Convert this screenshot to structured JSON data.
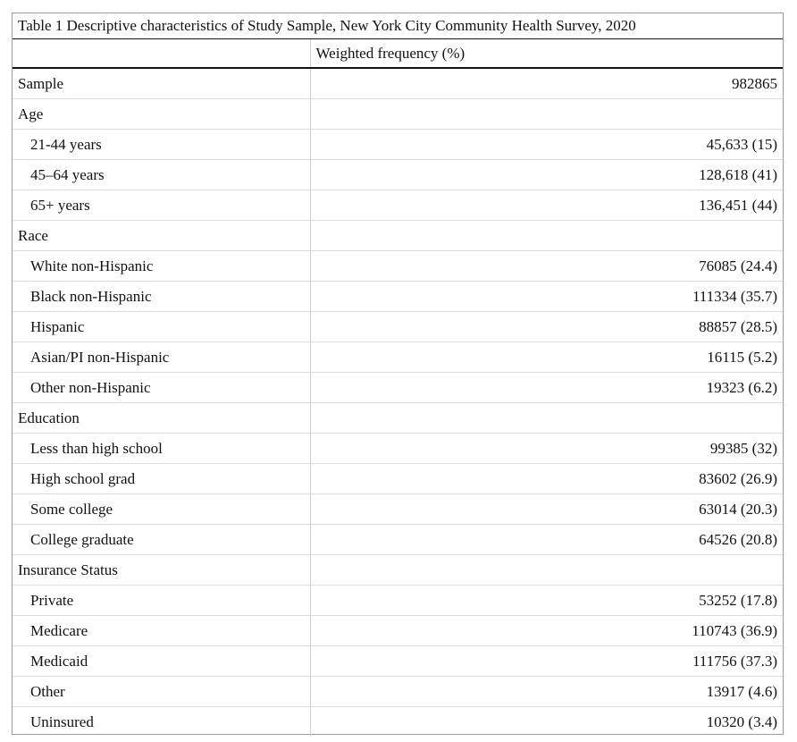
{
  "caption": "Table 1 Descriptive characteristics of Study Sample, New York City Community Health Survey, 2020",
  "header": {
    "col1": "",
    "col2": "Weighted frequency (%)"
  },
  "rows": [
    {
      "label": "Sample",
      "value": "982865"
    },
    {
      "label": "Age",
      "value": ""
    },
    {
      "label": "21-44 years",
      "value": "45,633 (15)"
    },
    {
      "label": "45–64 years",
      "value": "128,618 (41)"
    },
    {
      "label": "65+ years",
      "value": "136,451 (44)"
    },
    {
      "label": "Race",
      "value": ""
    },
    {
      "label": "White non-Hispanic",
      "value": "76085 (24.4)"
    },
    {
      "label": "Black non-Hispanic",
      "value": "111334 (35.7)"
    },
    {
      "label": "Hispanic",
      "value": "88857 (28.5)"
    },
    {
      "label": "Asian/PI non-Hispanic",
      "value": "16115 (5.2)"
    },
    {
      "label": "Other non-Hispanic",
      "value": "19323 (6.2)"
    },
    {
      "label": "Education",
      "value": ""
    },
    {
      "label": "Less than high school",
      "value": "99385 (32)"
    },
    {
      "label": "High school grad",
      "value": "83602 (26.9)"
    },
    {
      "label": "Some college",
      "value": "63014 (20.3)"
    },
    {
      "label": "College graduate",
      "value": "64526 (20.8)"
    },
    {
      "label": "Insurance Status",
      "value": ""
    },
    {
      "label": "Private",
      "value": "53252 (17.8)"
    },
    {
      "label": "Medicare",
      "value": "110743 (36.9)"
    },
    {
      "label": "Medicaid",
      "value": "111756 (37.3)"
    },
    {
      "label": "Other",
      "value": "13917 (4.6)"
    },
    {
      "label": "Uninsured",
      "value": "10320 (3.4)"
    }
  ]
}
